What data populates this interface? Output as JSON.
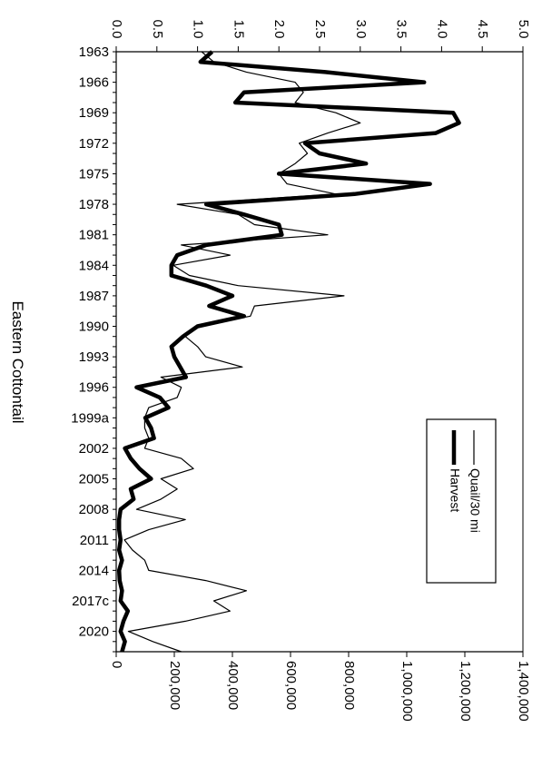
{
  "chart_data": {
    "type": "line",
    "title": "Eastern Cottontail",
    "orientation": "rotated-90-clockwise",
    "x_ticks": [
      "1963",
      "1966",
      "1969",
      "1972",
      "1975",
      "1978",
      "1981",
      "1984",
      "1987",
      "1990",
      "1993",
      "1996",
      "1999a",
      "2002",
      "2005",
      "2008",
      "2011",
      "2014",
      "2017c",
      "2020"
    ],
    "x": [
      1963,
      1964,
      1965,
      1966,
      1967,
      1968,
      1969,
      1970,
      1971,
      1972,
      1973,
      1974,
      1975,
      1976,
      1977,
      1978,
      1979,
      1980,
      1981,
      1982,
      1983,
      1984,
      1985,
      1986,
      1987,
      1988,
      1989,
      1990,
      1991,
      1992,
      1993,
      1994,
      1995,
      1996,
      1997,
      1998,
      1999,
      2000,
      2001,
      2002,
      2003,
      2004,
      2005,
      2006,
      2007,
      2008,
      2009,
      2010,
      2011,
      2012,
      2013,
      2014,
      2015,
      2016,
      2017,
      2018,
      2019,
      2020,
      2021,
      2022
    ],
    "left_axis": {
      "ticks": [
        "0.0",
        "0.5",
        "1.0",
        "1.5",
        "2.0",
        "2.5",
        "3.0",
        "3.5",
        "4.0",
        "4.5",
        "5.0"
      ],
      "range": [
        0,
        5
      ]
    },
    "right_axis": {
      "ticks": [
        "0",
        "200,000",
        "400,000",
        "600,000",
        "800,000",
        "1,000,000",
        "1,200,000",
        "1,400,000"
      ],
      "range": [
        0,
        1400000
      ]
    },
    "series": [
      {
        "name": "Quail/30 mi",
        "axis": "left",
        "color": "#000000",
        "values": [
          1.05,
          1.2,
          1.6,
          2.2,
          2.3,
          2.2,
          2.7,
          3.0,
          2.6,
          2.25,
          2.35,
          2.2,
          2.0,
          2.1,
          2.7,
          0.75,
          1.5,
          1.7,
          2.6,
          0.8,
          1.4,
          0.7,
          0.9,
          1.5,
          2.8,
          1.7,
          1.65,
          1.0,
          0.85,
          1.0,
          1.1,
          1.55,
          0.55,
          0.8,
          0.75,
          0.4,
          0.35,
          0.35,
          0.4,
          0.35,
          0.8,
          0.95,
          0.55,
          0.75,
          0.55,
          0.25,
          0.85,
          0.4,
          0.1,
          0.2,
          0.35,
          0.4,
          1.1,
          1.6,
          1.2,
          1.4,
          0.85,
          0.15,
          0.45,
          0.8
        ]
      },
      {
        "name": "Harvest",
        "axis": "right",
        "color": "#000000",
        "values": [
          330000,
          290000,
          720000,
          1060000,
          440000,
          410000,
          1160000,
          1180000,
          1100000,
          650000,
          700000,
          860000,
          560000,
          1080000,
          820000,
          310000,
          440000,
          560000,
          570000,
          310000,
          210000,
          190000,
          190000,
          310000,
          400000,
          320000,
          440000,
          280000,
          230000,
          190000,
          200000,
          220000,
          240000,
          70000,
          150000,
          180000,
          100000,
          120000,
          130000,
          30000,
          50000,
          80000,
          120000,
          50000,
          60000,
          15000,
          10000,
          10000,
          15000,
          10000,
          20000,
          10000,
          12000,
          20000,
          15000,
          40000,
          25000,
          15000,
          30000,
          20000
        ]
      }
    ],
    "legend": {
      "position": "lower-right",
      "entries": [
        "Quail/30 mi",
        "Harvest"
      ]
    }
  }
}
